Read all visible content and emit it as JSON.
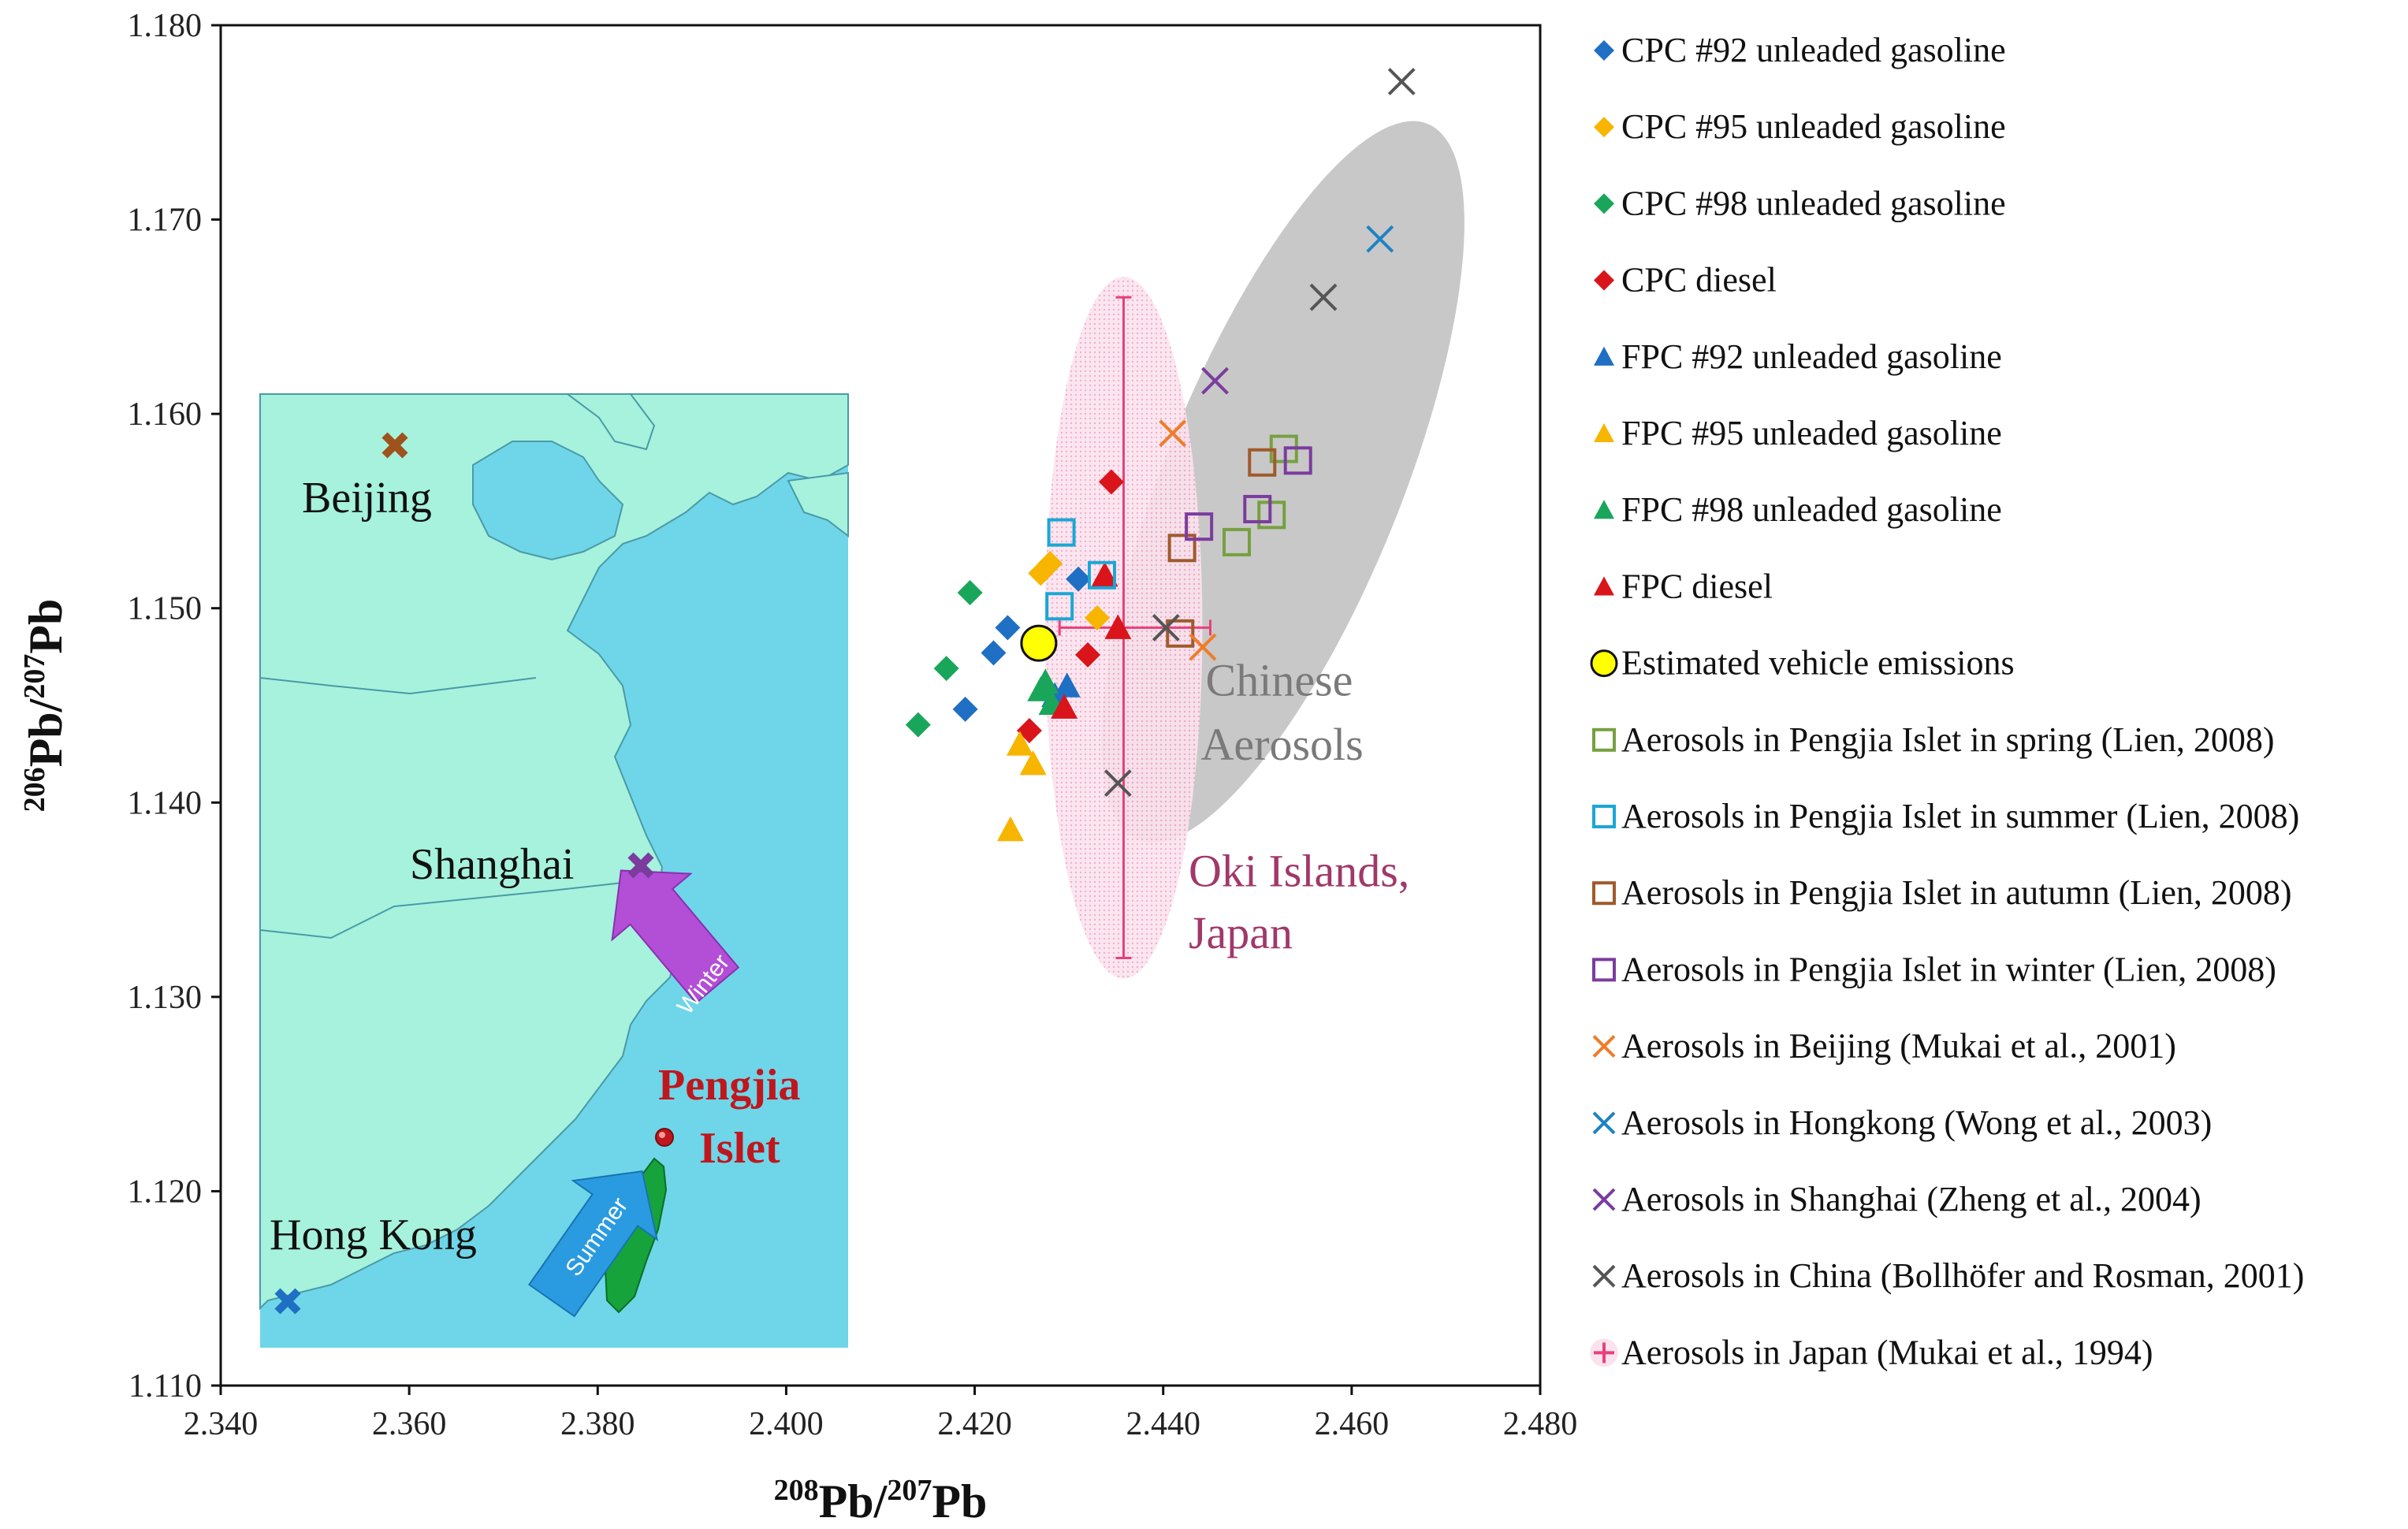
{
  "chart_data": {
    "type": "scatter",
    "title": "",
    "xlabel": {
      "sup": "208",
      "main": "Pb/",
      "sup2": "207",
      "main2": "Pb"
    },
    "ylabel": {
      "sup": "206",
      "main": "Pb/",
      "sup2": "207",
      "main2": "Pb"
    },
    "xlim": [
      2.34,
      2.48
    ],
    "ylim": [
      1.11,
      1.18
    ],
    "x_ticks": [
      "2.340",
      "2.360",
      "2.380",
      "2.400",
      "2.420",
      "2.440",
      "2.460",
      "2.480"
    ],
    "y_ticks": [
      "1.110",
      "1.120",
      "1.130",
      "1.140",
      "1.150",
      "1.160",
      "1.170",
      "1.180"
    ],
    "legend_position": "right",
    "series": [
      {
        "name": "CPC #92 unleaded gasoline",
        "marker": "diamond",
        "color": "#1f6fc4",
        "points": [
          [
            2.4235,
            1.149
          ],
          [
            2.422,
            1.1477
          ],
          [
            2.419,
            1.1448
          ],
          [
            2.431,
            1.1515
          ]
        ]
      },
      {
        "name": "CPC #95 unleaded gasoline",
        "marker": "diamond",
        "color": "#f7b500",
        "points": [
          [
            2.427,
            1.1518
          ],
          [
            2.428,
            1.1523
          ],
          [
            2.433,
            1.1495
          ]
        ]
      },
      {
        "name": "CPC #98 unleaded gasoline",
        "marker": "diamond",
        "color": "#1aa65a",
        "points": [
          [
            2.4195,
            1.1508
          ],
          [
            2.417,
            1.1469
          ],
          [
            2.414,
            1.144
          ]
        ]
      },
      {
        "name": "CPC diesel",
        "marker": "diamond",
        "color": "#d9151b",
        "points": [
          [
            2.4345,
            1.1565
          ],
          [
            2.432,
            1.1476
          ],
          [
            2.4258,
            1.1437
          ]
        ]
      },
      {
        "name": "FPC #92 unleaded gasoline",
        "marker": "triangle",
        "color": "#1f6fc4",
        "points": [
          [
            2.4298,
            1.146
          ],
          [
            2.4285,
            1.1455
          ]
        ]
      },
      {
        "name": "FPC #95 unleaded gasoline",
        "marker": "triangle",
        "color": "#f7b500",
        "points": [
          [
            2.4248,
            1.143
          ],
          [
            2.4262,
            1.142
          ],
          [
            2.4238,
            1.1386
          ]
        ]
      },
      {
        "name": "FPC #98 unleaded gasoline",
        "marker": "triangle",
        "color": "#1aa65a",
        "points": [
          [
            2.427,
            1.1458
          ],
          [
            2.4282,
            1.1451
          ],
          [
            2.4275,
            1.1462
          ]
        ]
      },
      {
        "name": "FPC diesel",
        "marker": "triangle",
        "color": "#d9151b",
        "points": [
          [
            2.4338,
            1.1517
          ],
          [
            2.4352,
            1.149
          ],
          [
            2.4295,
            1.1449
          ]
        ]
      },
      {
        "name": "Estimated vehicle emissions",
        "marker": "circle",
        "color": "#ffff00",
        "points": [
          [
            2.4268,
            1.1482
          ]
        ]
      },
      {
        "name": "Aerosols in Pengjia Islet in spring (Lien, 2008)",
        "marker": "square-open",
        "color": "#76a040",
        "points": [
          [
            2.4528,
            1.1582
          ],
          [
            2.4515,
            1.1548
          ],
          [
            2.4478,
            1.1534
          ]
        ]
      },
      {
        "name": "Aerosols in Pengjia Islet in summer (Lien, 2008)",
        "marker": "square-open",
        "color": "#1aa7d6",
        "points": [
          [
            2.4292,
            1.1539
          ],
          [
            2.429,
            1.1501
          ],
          [
            2.4335,
            1.1517
          ]
        ]
      },
      {
        "name": "Aerosols in Pengjia Islet in autumn (Lien, 2008)",
        "marker": "square-open",
        "color": "#a05a2c",
        "points": [
          [
            2.4505,
            1.1575
          ],
          [
            2.442,
            1.1531
          ],
          [
            2.4418,
            1.1487
          ]
        ]
      },
      {
        "name": "Aerosols in Pengjia Islet in winter (Lien, 2008)",
        "marker": "square-open",
        "color": "#7b3c9e",
        "points": [
          [
            2.4543,
            1.1576
          ],
          [
            2.45,
            1.1551
          ],
          [
            2.4438,
            1.1542
          ]
        ]
      },
      {
        "name": "Aerosols in Beijing (Mukai et al., 2001)",
        "marker": "x",
        "color": "#f07c28",
        "points": [
          [
            2.441,
            1.159
          ],
          [
            2.4442,
            1.148
          ]
        ]
      },
      {
        "name": "Aerosols in Hongkong (Wong et al., 2003)",
        "marker": "x",
        "color": "#1f82c4",
        "points": [
          [
            2.463,
            1.169
          ]
        ]
      },
      {
        "name": "Aerosols in Shanghai (Zheng et al., 2004)",
        "marker": "x",
        "color": "#7b3c9e",
        "points": [
          [
            2.4455,
            1.1617
          ]
        ]
      },
      {
        "name": "Aerosols in China (Bollhöfer and Rosman, 2001)",
        "marker": "x",
        "color": "#555555",
        "points": [
          [
            2.4653,
            1.1771
          ],
          [
            2.457,
            1.166
          ],
          [
            2.4403,
            1.149
          ],
          [
            2.4352,
            1.141
          ]
        ]
      },
      {
        "name": "Aerosols in Japan (Mukai et al., 1994)",
        "marker": "plus",
        "color": "#e8407a",
        "points": [
          [
            2.4358,
            1.149
          ]
        ],
        "x_err": [
          2.429,
          2.445
        ],
        "y_err": [
          1.132,
          1.166
        ]
      }
    ],
    "annotations": {
      "grey_region_label_line1": "Chinese",
      "grey_region_label_line2": "Aerosols",
      "pink_region_label_line1": "Oki Islands,",
      "pink_region_label_line2": "Japan"
    }
  },
  "map_inset": {
    "cities": [
      {
        "name": "Beijing",
        "marker_color": "#a0521c"
      },
      {
        "name": "Shanghai",
        "marker_color": "#7b3c9e"
      },
      {
        "name": "Hong Kong",
        "marker_color": "#1f6fc4"
      }
    ],
    "islet_label_line1": "Pengjia",
    "islet_label_line2": "Islet",
    "winter_arrow_text": "Winter",
    "summer_arrow_text": "Summer",
    "colors": {
      "sea": "#6ed6e8",
      "land": "#a6f2dc",
      "taiwan": "#16a33c",
      "winter_arrow": "#b34fd6",
      "summer_arrow": "#2a9be0"
    }
  }
}
